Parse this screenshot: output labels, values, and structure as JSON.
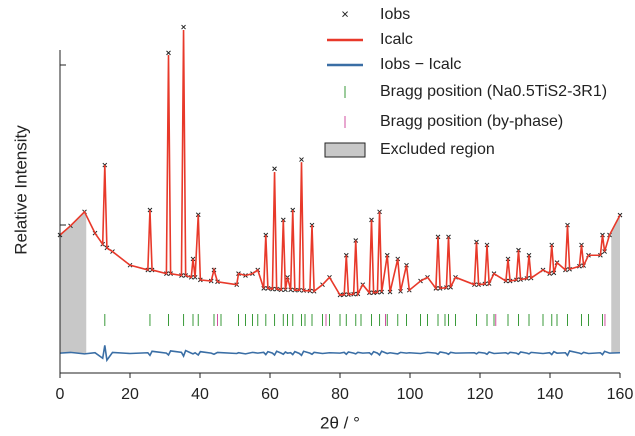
{
  "chart_data": {
    "type": "rietveld",
    "xlabel": "2θ / °",
    "ylabel": "Relative Intensity",
    "xlim": [
      0,
      160
    ],
    "xticks": [
      0,
      20,
      40,
      60,
      80,
      100,
      120,
      140,
      160
    ],
    "ylim": [
      0,
      100
    ],
    "x": [
      0,
      3,
      7,
      10,
      12.2,
      12.8,
      13.4,
      15,
      20,
      25.1,
      25.7,
      26.3,
      30.4,
      31,
      31.6,
      34.7,
      35.3,
      35.9,
      37.5,
      38,
      38.6,
      39.5,
      40.1,
      43.2,
      44,
      45,
      50.5,
      51,
      53,
      55,
      56.5,
      58.2,
      58.8,
      59.4,
      60.7,
      61.3,
      61.9,
      63.2,
      63.8,
      64.4,
      65,
      65.9,
      66.5,
      67.1,
      68.4,
      69,
      69.6,
      71.4,
      72,
      72.6,
      75,
      77,
      80,
      81.2,
      81.8,
      82.4,
      83.9,
      84.5,
      85.1,
      86.5,
      88.4,
      89,
      89.6,
      90.7,
      91.3,
      91.9,
      93.5,
      94.3,
      96.5,
      97.3,
      99,
      99.8,
      103,
      105,
      107.4,
      108,
      108.6,
      110.4,
      111,
      111.6,
      113,
      118.4,
      119,
      119.6,
      121.4,
      122,
      122.6,
      124,
      127.4,
      128,
      128.6,
      130.4,
      131,
      131.6,
      133.4,
      134,
      134.6,
      138,
      139.9,
      140.5,
      141.1,
      142,
      144.4,
      145,
      145.6,
      148.4,
      149,
      149.6,
      151,
      154.4,
      155,
      155.6,
      157,
      160
    ],
    "series": [
      {
        "name": "Iobs",
        "color": "#222222",
        "values": [
          37.5,
          40,
          43.8,
          38,
          35,
          56.5,
          34,
          33,
          29.3,
          28,
          44.3,
          28,
          27,
          87,
          27,
          26.5,
          94,
          26.5,
          26,
          31,
          26,
          43,
          25.3,
          25,
          28,
          24.8,
          24,
          27,
          26.5,
          27,
          28,
          23,
          37.5,
          23,
          22.8,
          55.5,
          22.8,
          22.6,
          41.6,
          22.6,
          26,
          22.6,
          44.3,
          22.5,
          22.5,
          58,
          22.4,
          22.3,
          40.2,
          22.2,
          24,
          26,
          21.2,
          21.3,
          32,
          21.3,
          21.4,
          36,
          21.5,
          24,
          21.8,
          41.6,
          21.8,
          21.9,
          43.8,
          22,
          32,
          22,
          31,
          22.2,
          29.3,
          22.5,
          25,
          26,
          23,
          37,
          23,
          23.2,
          37,
          23.3,
          26,
          24,
          35.6,
          24,
          24.2,
          34.8,
          24.3,
          27,
          25,
          31,
          25,
          25.3,
          33.4,
          25.4,
          25.7,
          32,
          25.8,
          28,
          27,
          34.8,
          27.2,
          30,
          28,
          40.2,
          28.2,
          29,
          34.8,
          29.2,
          32,
          32,
          37.5,
          33,
          37.5,
          42.9
        ]
      },
      {
        "name": "Icalc",
        "color": "#e8392a",
        "values": [
          37.5,
          40,
          43.8,
          38,
          35,
          56.5,
          34,
          33,
          29.3,
          28,
          44.3,
          28,
          27,
          86.4,
          27,
          26.5,
          93.2,
          26.5,
          26,
          31,
          26,
          43,
          25.3,
          25,
          28,
          24.8,
          24,
          27,
          26.5,
          27,
          28,
          23,
          37.5,
          23,
          22.8,
          54.6,
          22.8,
          22.6,
          41.6,
          22.6,
          26,
          22.6,
          44.3,
          22.5,
          22.5,
          57.3,
          22.4,
          22.3,
          40.2,
          22.2,
          24,
          26,
          21.2,
          21.3,
          32,
          21.3,
          21.4,
          36,
          21.5,
          24,
          21.8,
          41.6,
          21.8,
          21.9,
          43.8,
          22,
          32,
          22,
          31,
          22.2,
          29.3,
          22.5,
          25,
          26,
          23,
          37,
          23,
          23.2,
          37,
          23.3,
          26,
          24,
          35.6,
          24,
          24.2,
          34.8,
          24.3,
          27,
          25,
          31,
          25,
          25.3,
          33.4,
          25.4,
          25.7,
          32,
          25.8,
          28,
          27,
          34.8,
          27.2,
          30,
          28,
          40.2,
          28.2,
          29,
          34.8,
          29.2,
          32,
          32,
          37.5,
          33,
          37.5,
          42.9
        ]
      },
      {
        "name": "Iobs − Icalc",
        "color": "#3a6ea5",
        "values": [
          5.4,
          5.6,
          5.2,
          5.5,
          4,
          7.5,
          3.5,
          5.6,
          5.3,
          5.5,
          4.8,
          5.9,
          5.4,
          4.9,
          6,
          5.6,
          4.6,
          6.1,
          5.4,
          5.2,
          5.5,
          4.9,
          5.8,
          5.4,
          5.1,
          5.6,
          5.3,
          5.5,
          5.2,
          5.6,
          5.4,
          5.6,
          5,
          5.8,
          5.4,
          4.9,
          5.9,
          5.4,
          5.1,
          5.7,
          5.4,
          5.5,
          5,
          5.8,
          5.3,
          4.8,
          5.9,
          5.4,
          5.1,
          5.6,
          5.3,
          5.5,
          5.4,
          5.6,
          5.1,
          5.7,
          5.4,
          5.2,
          5.6,
          5.4,
          5.5,
          5,
          5.8,
          5.4,
          4.9,
          5.9,
          5.3,
          5.5,
          5.2,
          5.6,
          5.4,
          5.5,
          5.3,
          5.6,
          5.4,
          5.1,
          5.7,
          5.4,
          5.1,
          5.6,
          5.4,
          5.5,
          5.2,
          5.6,
          5.4,
          5.1,
          5.7,
          5.3,
          5.5,
          5.2,
          5.6,
          5.4,
          5.1,
          5.7,
          5.4,
          5.2,
          5.6,
          5.3,
          5.5,
          5,
          5.8,
          5.4,
          5.5,
          4.8,
          6,
          5.4,
          5.2,
          5.6,
          5.3,
          5.5,
          5,
          5.9,
          5.4,
          5.5
        ]
      }
    ],
    "bragg": [
      {
        "name": "Bragg position (Na0.5TiS2-3R1)",
        "color": "#3a9a3a",
        "positions": [
          12.8,
          25.7,
          31,
          35.3,
          38,
          39.5,
          44,
          46,
          51,
          53,
          55,
          56.5,
          58.8,
          61.3,
          63.8,
          65,
          66.5,
          69,
          70,
          72,
          75,
          77,
          80,
          81.8,
          84.5,
          86,
          89,
          91.3,
          93.5,
          96.5,
          99,
          103,
          105,
          108,
          110,
          111,
          113,
          119,
          122,
          124,
          128,
          131,
          134,
          138,
          140.5,
          142,
          145,
          149,
          151,
          155
        ]
      },
      {
        "name": "Bragg position (by-phase)",
        "color": "#d24fa0",
        "positions": [
          45,
          76,
          93,
          124.5,
          155.7
        ]
      }
    ],
    "excluded": {
      "name": "Excluded region",
      "color": "#c8c8c8",
      "ranges": [
        [
          0,
          7.5
        ],
        [
          157.5,
          160
        ]
      ]
    }
  }
}
